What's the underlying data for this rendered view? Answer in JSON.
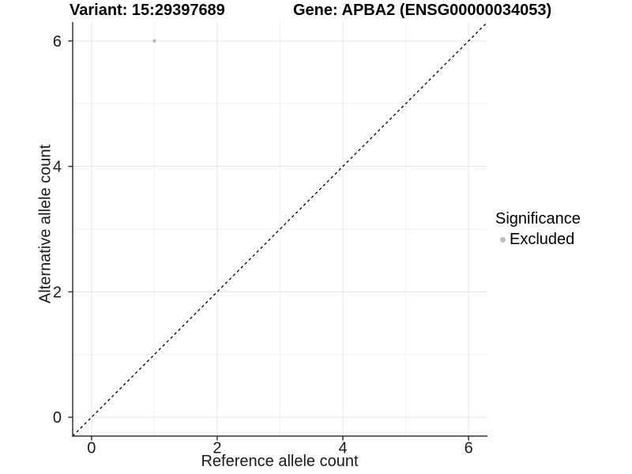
{
  "titles": {
    "variant": "Variant: 15:29397689",
    "gene": "Gene: APBA2 (ENSG00000034053)"
  },
  "chart_data": {
    "type": "scatter",
    "title_left": "Variant: 15:29397689",
    "title_right": "Gene: APBA2 (ENSG00000034053)",
    "xlabel": "Reference allele count",
    "ylabel": "Alternative allele count",
    "xlim": [
      -0.3,
      6.3
    ],
    "ylim": [
      -0.3,
      6.3
    ],
    "x_ticks": [
      0,
      2,
      4,
      6
    ],
    "y_ticks": [
      0,
      2,
      4,
      6
    ],
    "x_minor_ticks": [
      1,
      3,
      5
    ],
    "y_minor_ticks": [
      1,
      3,
      5
    ],
    "grid": true,
    "series": [
      {
        "name": "Excluded",
        "points": [
          {
            "x": 1,
            "y": 6
          }
        ],
        "color": "#bebebe"
      }
    ],
    "reference_line": {
      "type": "identity",
      "style": "dashed",
      "from": [
        -0.3,
        -0.3
      ],
      "to": [
        6.3,
        6.3
      ],
      "color": "#000000"
    },
    "legend": {
      "title": "Significance",
      "position": "right",
      "items": [
        {
          "label": "Excluded",
          "color": "#bebebe"
        }
      ]
    },
    "colors": {
      "background": "#ffffff",
      "grid_major": "#e4e4e4",
      "grid_minor": "#f0f0f0",
      "axis_line": "#333333",
      "tick_mark": "#333333",
      "tick_text": "#1a1a1a",
      "point": "#bebebe"
    }
  }
}
